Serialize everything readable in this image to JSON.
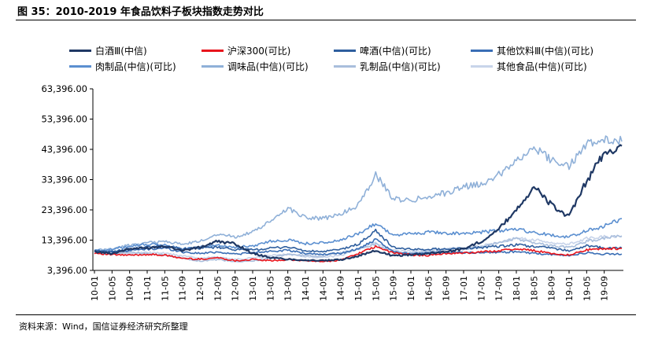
{
  "figure": {
    "title": "图 35：2010-2019 年食品饮料子板块指数走势对比",
    "source": "资料来源：Wind，国信证券经济研究所整理"
  },
  "chart_data": {
    "type": "line",
    "title": "",
    "xlabel": "",
    "ylabel": "",
    "y_ticks": [
      3396,
      13396,
      23396,
      33396,
      43396,
      53396,
      63396
    ],
    "y_tick_labels": [
      "3,396.00",
      "13,396.00",
      "23,396.00",
      "33,396.00",
      "43,396.00",
      "53,396.00",
      "63,396.00"
    ],
    "ylim": [
      3396,
      63396
    ],
    "x_tick_labels": [
      "10-01",
      "10-05",
      "10-09",
      "11-01",
      "11-05",
      "11-09",
      "12-01",
      "12-05",
      "12-09",
      "13-01",
      "13-05",
      "13-09",
      "14-01",
      "14-05",
      "14-09",
      "15-01",
      "15-05",
      "15-09",
      "16-01",
      "16-05",
      "16-09",
      "17-01",
      "17-05",
      "17-09",
      "18-01",
      "18-05",
      "18-09",
      "19-01",
      "19-05",
      "19-09"
    ],
    "grid": false,
    "legend_position": "top",
    "x": [
      "10-01",
      "10-05",
      "10-09",
      "11-01",
      "11-05",
      "11-09",
      "12-01",
      "12-05",
      "12-09",
      "13-01",
      "13-05",
      "13-09",
      "14-01",
      "14-05",
      "14-09",
      "15-01",
      "15-05",
      "15-09",
      "16-01",
      "16-05",
      "16-09",
      "17-01",
      "17-05",
      "17-09",
      "18-01",
      "18-05",
      "18-09",
      "19-01",
      "19-05",
      "19-09",
      "19-12"
    ],
    "series": [
      {
        "name": "白酒Ⅲ(中信)",
        "color": "#1f3864",
        "width": 2.2,
        "values": [
          9600,
          9000,
          10500,
          10800,
          11500,
          10000,
          11000,
          13000,
          12200,
          9000,
          7600,
          7100,
          6800,
          6600,
          6900,
          8200,
          9900,
          8200,
          8600,
          9000,
          9600,
          10500,
          13000,
          17000,
          23500,
          31000,
          25000,
          21000,
          33000,
          42000,
          44500
        ]
      },
      {
        "name": "沪深300(可比)",
        "color": "#e8141c",
        "width": 1.6,
        "values": [
          9200,
          8600,
          8400,
          8700,
          8400,
          7400,
          7100,
          7600,
          6600,
          7000,
          6600,
          6900,
          6600,
          6300,
          6800,
          9000,
          11200,
          9200,
          8500,
          8400,
          9000,
          9100,
          9500,
          9900,
          10500,
          10000,
          9000,
          8500,
          10200,
          10500,
          10700
        ]
      },
      {
        "name": "啤酒(中信)(可比)",
        "color": "#2e5e9e",
        "width": 1.6,
        "values": [
          9800,
          9500,
          10500,
          11000,
          11500,
          10500,
          10800,
          11000,
          10300,
          10200,
          10700,
          11200,
          9800,
          9600,
          10300,
          12000,
          16500,
          11000,
          10300,
          10400,
          10500,
          10700,
          11000,
          11300,
          11800,
          11300,
          10800,
          9900,
          11500,
          10800,
          10800
        ]
      },
      {
        "name": "其他饮料Ⅲ(中信)(可比)",
        "color": "#3a6eb5",
        "width": 1.6,
        "values": [
          9700,
          9600,
          10000,
          10400,
          10800,
          9500,
          9000,
          9500,
          8800,
          9200,
          9800,
          10000,
          9000,
          8700,
          9000,
          10500,
          13500,
          9500,
          9000,
          9200,
          9400,
          9300,
          9300,
          9400,
          9600,
          9000,
          8600,
          8300,
          9200,
          8800,
          8800
        ]
      },
      {
        "name": "肉制品(中信)(可比)",
        "color": "#5b8fd0",
        "width": 1.6,
        "values": [
          9900,
          10300,
          11500,
          12000,
          11800,
          10500,
          11000,
          11800,
          11000,
          11500,
          13000,
          13500,
          12300,
          12500,
          13300,
          15500,
          19000,
          15000,
          15500,
          16000,
          15800,
          15500,
          16000,
          16500,
          17000,
          16000,
          15000,
          14500,
          16500,
          18000,
          20500
        ]
      },
      {
        "name": "调味品(中信)(可比)",
        "color": "#8fb0d8",
        "width": 1.6,
        "values": [
          10000,
          10500,
          11800,
          12500,
          13000,
          12000,
          13000,
          15500,
          14500,
          16000,
          19500,
          24000,
          21000,
          20500,
          22000,
          25000,
          35000,
          27000,
          26500,
          28000,
          29000,
          31000,
          32000,
          35000,
          40000,
          44000,
          40000,
          38000,
          45000,
          47000,
          46000
        ]
      },
      {
        "name": "乳制品(中信)(可比)",
        "color": "#a9bedc",
        "width": 1.6,
        "values": [
          9500,
          9000,
          9600,
          8800,
          8500,
          7500,
          6500,
          7000,
          6200,
          6500,
          7600,
          8600,
          8300,
          8100,
          9200,
          10500,
          12000,
          9500,
          9300,
          9500,
          10300,
          10500,
          11000,
          12500,
          14000,
          12500,
          11500,
          11000,
          13000,
          14000,
          14800
        ]
      },
      {
        "name": "其他食品(中信)(可比)",
        "color": "#c8d4ea",
        "width": 1.6,
        "values": [
          9600,
          9200,
          9000,
          9300,
          9000,
          8200,
          7500,
          7800,
          7000,
          7500,
          8300,
          8800,
          7900,
          7800,
          8300,
          10500,
          12500,
          10000,
          9600,
          10000,
          10600,
          10800,
          11500,
          12500,
          14000,
          13500,
          12500,
          12000,
          14000,
          14500,
          14500
        ]
      }
    ]
  }
}
